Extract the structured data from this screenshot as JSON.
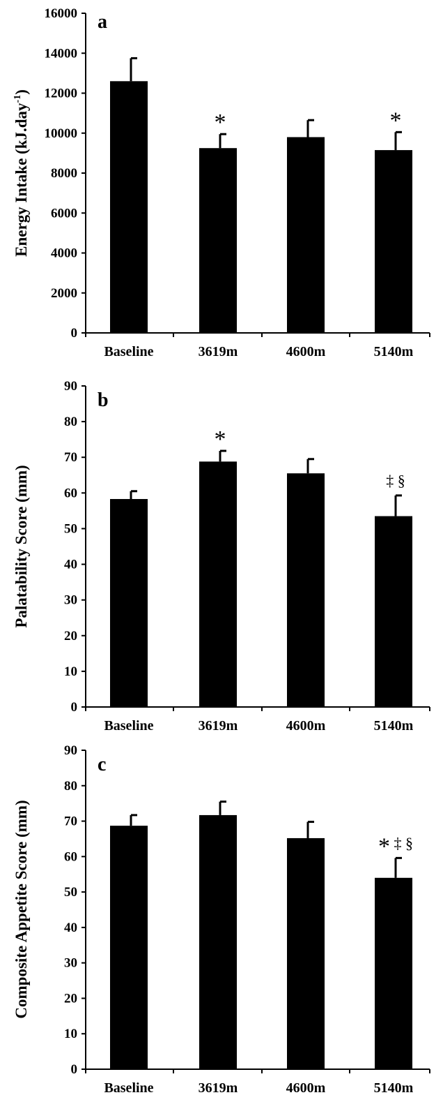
{
  "chart_data": [
    {
      "type": "bar",
      "panel": "a",
      "ylabel": "Energy Intake (kJ.day",
      "ylabel_sup": "-1",
      "ylabel_close": ")",
      "ylim": [
        0,
        16000
      ],
      "yticks": [
        0,
        2000,
        4000,
        6000,
        8000,
        10000,
        12000,
        14000,
        16000
      ],
      "categories": [
        "Baseline",
        "3619m",
        "4600m",
        "5140m"
      ],
      "values": [
        12600,
        9250,
        9800,
        9150
      ],
      "errors": [
        1150,
        700,
        850,
        900
      ],
      "annotations": [
        "",
        "*",
        "",
        "*"
      ],
      "bar_color": "#000000"
    },
    {
      "type": "bar",
      "panel": "b",
      "ylabel": "Palatability Score (mm)",
      "ylim": [
        0,
        90
      ],
      "yticks": [
        0,
        10,
        20,
        30,
        40,
        50,
        60,
        70,
        80,
        90
      ],
      "categories": [
        "Baseline",
        "3619m",
        "4600m",
        "5140m"
      ],
      "values": [
        58.3,
        68.8,
        65.5,
        53.5
      ],
      "errors": [
        2.2,
        3.0,
        4.0,
        5.8
      ],
      "annotations": [
        "",
        "*",
        "",
        "‡ §"
      ],
      "bar_color": "#000000"
    },
    {
      "type": "bar",
      "panel": "c",
      "ylabel": "Composite Appetite Score (mm)",
      "ylim": [
        0,
        90
      ],
      "yticks": [
        0,
        10,
        20,
        30,
        40,
        50,
        60,
        70,
        80,
        90
      ],
      "categories": [
        "Baseline",
        "3619m",
        "4600m",
        "5140m"
      ],
      "values": [
        68.7,
        71.7,
        65.2,
        54.0
      ],
      "errors": [
        3.0,
        3.8,
        4.6,
        5.6
      ],
      "annotations": [
        "",
        "",
        "",
        "* ‡ §"
      ],
      "bar_color": "#000000"
    }
  ]
}
